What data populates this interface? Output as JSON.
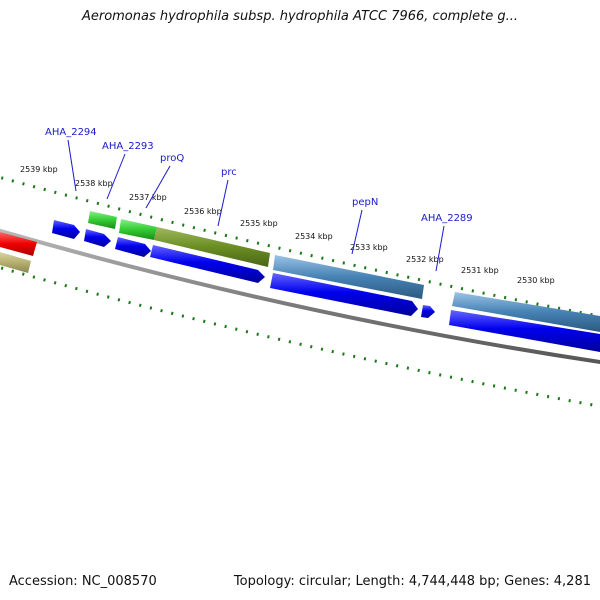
{
  "title": "Aeromonas hydrophila subsp. hydrophila ATCC 7966, complete g...",
  "footer": {
    "accession": "Accession: NC_008570",
    "summary": "Topology: circular; Length: 4,744,448 bp; Genes: 4,281"
  },
  "ticks": [
    "2539 kbp",
    "2538 kbp",
    "2537 kbp",
    "2536 kbp",
    "2535 kbp",
    "2534 kbp",
    "2533 kbp",
    "2532 kbp",
    "2531 kbp",
    "2530 kbp"
  ],
  "gene_labels": [
    "AHA_2294",
    "AHA_2293",
    "proQ",
    "prc",
    "pepN",
    "AHA_2289"
  ],
  "colors": {
    "backbone": "#808080",
    "cds": "#0000ee",
    "tick": "#1a7a1a",
    "label": "#1a1acc",
    "feature_red": "#ee1111",
    "feature_khaki": "#b5b070",
    "feature_green": "#33cc33",
    "feature_olive": "#6b8e23",
    "feature_steelblue": "#4682b4"
  }
}
